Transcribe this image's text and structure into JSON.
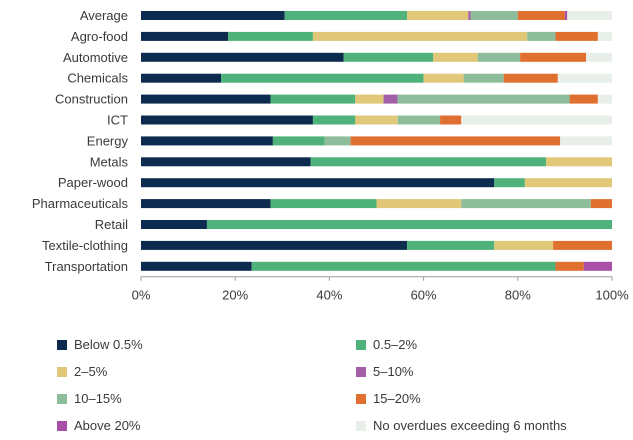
{
  "chart_data": {
    "type": "bar",
    "orientation": "horizontal",
    "stacked": true,
    "categories": [
      "Average",
      "Agro-food",
      "Automotive",
      "Chemicals",
      "Construction",
      "ICT",
      "Energy",
      "Metals",
      "Paper-wood",
      "Pharmaceuticals",
      "Retail",
      "Textile-clothing",
      "Transportation"
    ],
    "series": [
      {
        "name": "Below 0.5%",
        "color": "#0d2b4e",
        "values": [
          30.5,
          18.5,
          43,
          17,
          27.5,
          36.5,
          28,
          36,
          75,
          27.5,
          14,
          56.5,
          23.5
        ]
      },
      {
        "name": "0.5–2%",
        "color": "#4fb27a",
        "values": [
          26,
          18,
          19,
          43,
          18,
          9,
          11,
          50,
          6.5,
          22.5,
          86,
          18.5,
          64.5
        ]
      },
      {
        "name": "2–5%",
        "color": "#e0c878",
        "values": [
          13,
          45.5,
          9.5,
          8.5,
          6,
          9,
          0,
          14,
          18.5,
          18,
          0,
          12.5,
          0
        ]
      },
      {
        "name": "5–10%",
        "color": "#a35ea8",
        "values": [
          0.5,
          0,
          0,
          0,
          3,
          0,
          0,
          0,
          0,
          0,
          0,
          0,
          0
        ]
      },
      {
        "name": "10–15%",
        "color": "#8dbd9a",
        "values": [
          10,
          6,
          9,
          8.5,
          36.5,
          9,
          5.5,
          0,
          0,
          27.5,
          0,
          0,
          0
        ]
      },
      {
        "name": "15–20%",
        "color": "#e07030",
        "values": [
          10,
          9,
          14,
          11.5,
          6,
          4.5,
          44.5,
          0,
          0,
          4.5,
          0,
          12.5,
          6
        ]
      },
      {
        "name": "Above 20%",
        "color": "#a84fa8",
        "values": [
          0.5,
          0,
          0,
          0,
          0,
          0,
          0,
          0,
          0,
          0,
          0,
          0,
          6
        ]
      },
      {
        "name": "No overdues exceeding 6 months",
        "color": "#e8efe9",
        "values": [
          9.5,
          3,
          5.5,
          11.5,
          3,
          32,
          11,
          0,
          0,
          0,
          0,
          0,
          0
        ]
      }
    ],
    "xlim": [
      0,
      100
    ],
    "x_ticks": [
      "0%",
      "20%",
      "40%",
      "60%",
      "80%",
      "100%"
    ],
    "grid": false,
    "legend_position": "bottom"
  }
}
